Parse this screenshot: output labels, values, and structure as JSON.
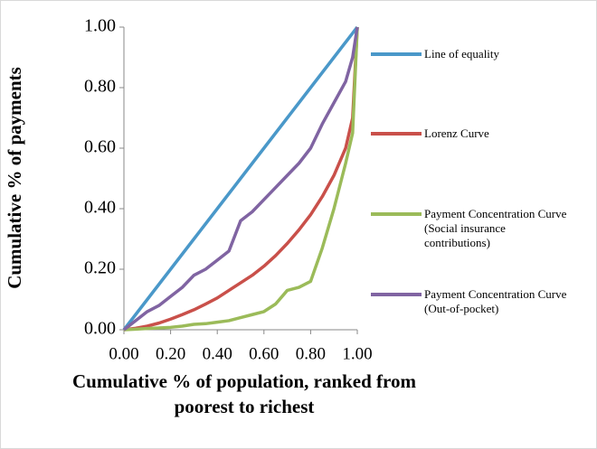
{
  "chart_data": {
    "type": "line",
    "x_label": "Cumulative % of population, ranked from poorest to richest",
    "y_label": "Cumulative % of payments",
    "x": [
      0,
      0.05,
      0.1,
      0.15,
      0.2,
      0.25,
      0.3,
      0.35,
      0.4,
      0.45,
      0.5,
      0.55,
      0.6,
      0.65,
      0.7,
      0.75,
      0.8,
      0.85,
      0.9,
      0.95,
      0.98,
      1.0
    ],
    "series": [
      {
        "name": "Line of equality",
        "color": "#4a98c9",
        "values": [
          0,
          0.05,
          0.1,
          0.15,
          0.2,
          0.25,
          0.3,
          0.35,
          0.4,
          0.45,
          0.5,
          0.55,
          0.6,
          0.65,
          0.7,
          0.75,
          0.8,
          0.85,
          0.9,
          0.95,
          0.98,
          1.0
        ]
      },
      {
        "name": "Lorenz Curve",
        "color": "#c9504a",
        "values": [
          0,
          0.005,
          0.012,
          0.022,
          0.035,
          0.05,
          0.066,
          0.085,
          0.105,
          0.13,
          0.155,
          0.18,
          0.21,
          0.245,
          0.285,
          0.33,
          0.38,
          0.44,
          0.51,
          0.6,
          0.7,
          1.0
        ]
      },
      {
        "name": "Payment Concentration Curve (Social insurance contributions)",
        "color": "#9bbb59",
        "values": [
          0,
          0.002,
          0.004,
          0.006,
          0.008,
          0.012,
          0.018,
          0.02,
          0.025,
          0.03,
          0.04,
          0.05,
          0.06,
          0.085,
          0.13,
          0.14,
          0.16,
          0.27,
          0.4,
          0.55,
          0.65,
          1.0
        ]
      },
      {
        "name": "Payment Concentration Curve (Out-of-pocket)",
        "color": "#8064a2",
        "values": [
          0,
          0.03,
          0.06,
          0.08,
          0.11,
          0.14,
          0.18,
          0.2,
          0.23,
          0.26,
          0.36,
          0.39,
          0.43,
          0.47,
          0.51,
          0.55,
          0.6,
          0.68,
          0.75,
          0.82,
          0.9,
          1.0
        ]
      }
    ],
    "xlim": [
      0,
      1
    ],
    "ylim": [
      0,
      1
    ],
    "xticks": [
      {
        "value": 0,
        "label": "0.00"
      },
      {
        "value": 0.2,
        "label": "0.20"
      },
      {
        "value": 0.4,
        "label": "0.40"
      },
      {
        "value": 0.6,
        "label": "0.60"
      },
      {
        "value": 0.8,
        "label": "0.80"
      },
      {
        "value": 1,
        "label": "1.00"
      }
    ],
    "yticks": [
      {
        "value": 0,
        "label": "0.00"
      },
      {
        "value": 0.2,
        "label": "0.20"
      },
      {
        "value": 0.4,
        "label": "0.40"
      },
      {
        "value": 0.6,
        "label": "0.60"
      },
      {
        "value": 0.8,
        "label": "0.80"
      },
      {
        "value": 1,
        "label": "1.00"
      }
    ],
    "grid": false,
    "legend": "right"
  }
}
